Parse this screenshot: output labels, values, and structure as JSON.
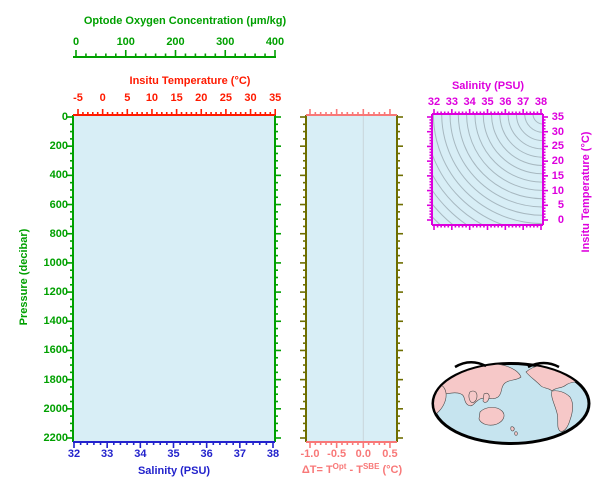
{
  "colors": {
    "green": "#00A000",
    "red": "#FF1A00",
    "blue": "#2222CC",
    "magenta": "#DD00DD",
    "salmon": "#F87878",
    "olive": "#6E6E00",
    "panel_fill": "#D8EEF6",
    "contour": "#A7B8C0",
    "ref_line": "#C9D6DB",
    "map_ocean": "#C6E4EF",
    "map_land": "#F6C8C8",
    "map_outline": "#000000",
    "background": "#FFFFFF"
  },
  "oxygen_axis": {
    "title": "Optode Oxygen Concentration (μm/kg)",
    "ticks": [
      "0",
      "100",
      "200",
      "300",
      "400"
    ]
  },
  "temperature_axis": {
    "title": "Insitu Temperature (°C)",
    "ticks": [
      "-5",
      "0",
      "5",
      "10",
      "15",
      "20",
      "25",
      "30",
      "35"
    ]
  },
  "pressure_axis": {
    "title": "Pressure (decibar)",
    "ticks": [
      "0",
      "200",
      "400",
      "600",
      "800",
      "1000",
      "1200",
      "1400",
      "1600",
      "1800",
      "2000",
      "2200"
    ]
  },
  "salinity_axis": {
    "title": "Salinity (PSU)",
    "ticks": [
      "32",
      "33",
      "34",
      "35",
      "36",
      "37",
      "38"
    ]
  },
  "delta_axis": {
    "ticks": [
      "-1.0",
      "-0.5",
      "0.0",
      "0.5"
    ],
    "title_pre": "ΔT= T",
    "title_sup1": "Opt",
    "title_mid": " - T",
    "title_sup2": "SBE",
    "title_suf": " (°C)"
  },
  "ts_diagram": {
    "top_title": "Salinity (PSU)",
    "top_ticks": [
      "32",
      "33",
      "34",
      "35",
      "36",
      "37",
      "38"
    ],
    "right_title": "Insitu Temperature (°C)",
    "right_ticks": [
      "35",
      "30",
      "25",
      "20",
      "15",
      "10",
      "5",
      "0"
    ]
  },
  "chart_data": [
    {
      "type": "line",
      "panel": "profile",
      "x_axes": [
        {
          "label": "Salinity (PSU)",
          "range": [
            32,
            38
          ],
          "position": "bottom",
          "color": "#2222CC"
        },
        {
          "label": "Insitu Temperature (°C)",
          "range": [
            -5,
            35
          ],
          "position": "top",
          "color": "#FF1A00"
        },
        {
          "label": "Optode Oxygen Concentration (μm/kg)",
          "range": [
            0,
            400
          ],
          "position": "top-detached",
          "color": "#00A000"
        }
      ],
      "y_axis": {
        "label": "Pressure (decibar)",
        "range": [
          0,
          2200
        ],
        "inverted": true,
        "color": "#00A000"
      },
      "series": [],
      "note": "empty profile frame, no data curve plotted"
    },
    {
      "type": "line",
      "panel": "delta-t",
      "x_axis": {
        "label": "ΔT= TOpt - TSBE (°C)",
        "range": [
          -1.0,
          0.5
        ],
        "color": "#F87878"
      },
      "y_axis": {
        "label": "Pressure (decibar)",
        "range": [
          0,
          2200
        ],
        "inverted": true,
        "shared_with": "profile"
      },
      "reference_line_x": 0.0,
      "series": []
    },
    {
      "type": "line",
      "panel": "ts-diagram",
      "x_axis": {
        "label": "Salinity (PSU)",
        "range": [
          32,
          38
        ],
        "position": "top",
        "color": "#DD00DD"
      },
      "y_axis": {
        "label": "Insitu Temperature (°C)",
        "range": [
          0,
          35
        ],
        "position": "right",
        "color": "#DD00DD"
      },
      "background_contours": {
        "description": "isopycnal density contour curves",
        "count": 18,
        "color": "#A7B8C0"
      },
      "series": []
    },
    {
      "type": "map",
      "panel": "inset-globe",
      "projection": "elliptical Pacific-centered world map",
      "land_color": "#F6C8C8",
      "ocean_color": "#C6E4EF"
    }
  ]
}
